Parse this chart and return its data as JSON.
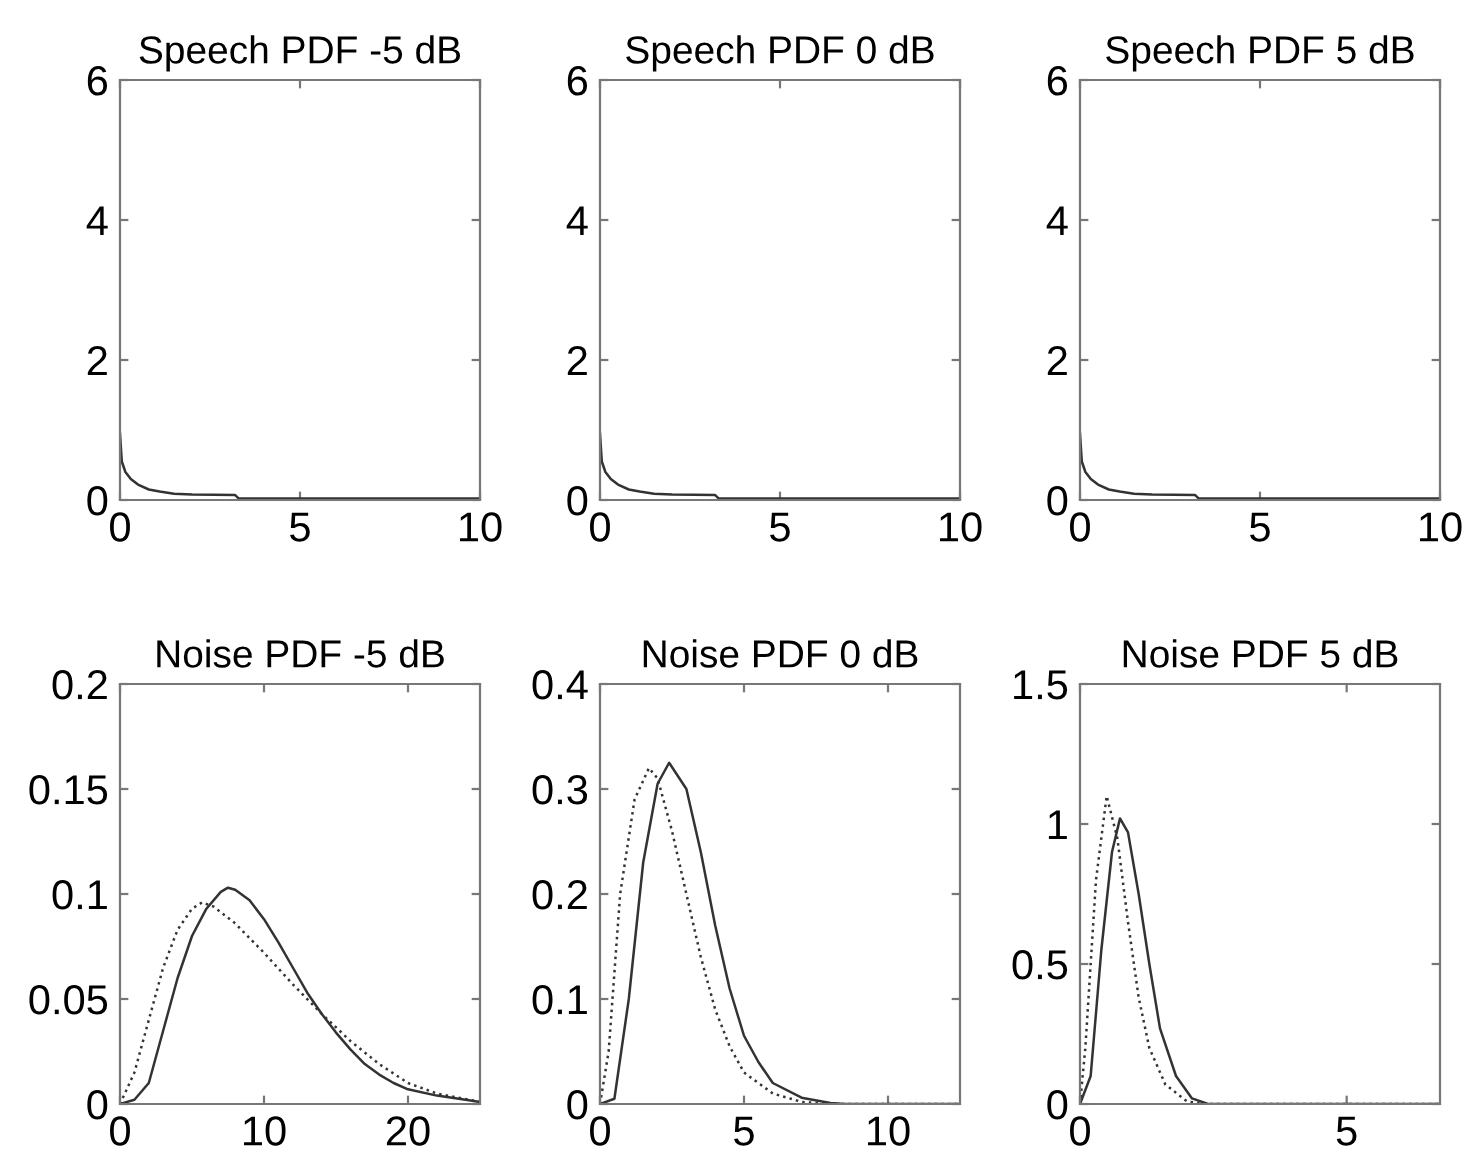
{
  "chart_data": [
    {
      "type": "line",
      "title": "Speech PDF -5 dB",
      "xlim": [
        0,
        10
      ],
      "xticks": [
        0,
        5,
        10
      ],
      "ylim": [
        0,
        6
      ],
      "yticks": [
        0,
        2,
        4,
        6
      ],
      "grid": false,
      "line_style": "solid",
      "series": [
        {
          "color": "#333333",
          "x": [
            0,
            0.05,
            0.15,
            0.3,
            0.5,
            0.8,
            1.1,
            1.5,
            2,
            3.2,
            3.3,
            10
          ],
          "values": [
            0.95,
            0.55,
            0.4,
            0.3,
            0.22,
            0.15,
            0.12,
            0.09,
            0.08,
            0.07,
            0.02,
            0.02
          ]
        }
      ]
    },
    {
      "type": "line",
      "title": "Speech PDF 0 dB",
      "xlim": [
        0,
        10
      ],
      "xticks": [
        0,
        5,
        10
      ],
      "ylim": [
        0,
        6
      ],
      "yticks": [
        0,
        2,
        4,
        6
      ],
      "grid": false,
      "line_style": "solid",
      "series": [
        {
          "color": "#333333",
          "x": [
            0,
            0.05,
            0.15,
            0.3,
            0.5,
            0.8,
            1.1,
            1.5,
            2,
            3.2,
            3.3,
            10
          ],
          "values": [
            0.95,
            0.55,
            0.4,
            0.3,
            0.22,
            0.15,
            0.12,
            0.09,
            0.08,
            0.07,
            0.02,
            0.02
          ]
        }
      ]
    },
    {
      "type": "line",
      "title": "Speech PDF 5 dB",
      "xlim": [
        0,
        10
      ],
      "xticks": [
        0,
        5,
        10
      ],
      "ylim": [
        0,
        6
      ],
      "yticks": [
        0,
        2,
        4,
        6
      ],
      "grid": false,
      "line_style": "solid",
      "series": [
        {
          "color": "#333333",
          "x": [
            0,
            0.05,
            0.15,
            0.3,
            0.5,
            0.8,
            1.1,
            1.5,
            2,
            3.2,
            3.3,
            10
          ],
          "values": [
            0.95,
            0.55,
            0.4,
            0.3,
            0.22,
            0.15,
            0.12,
            0.09,
            0.08,
            0.07,
            0.02,
            0.02
          ]
        }
      ]
    },
    {
      "type": "line",
      "title": "Noise PDF -5 dB",
      "xlim": [
        0,
        25
      ],
      "xticks": [
        0,
        10,
        20
      ],
      "ylim": [
        0,
        0.2
      ],
      "yticks": [
        0,
        0.05,
        0.1,
        0.15,
        0.2
      ],
      "grid": false,
      "series": [
        {
          "color": "#333333",
          "line_style": "solid",
          "x": [
            0,
            1,
            2,
            3,
            4,
            5,
            6,
            7,
            7.5,
            8,
            9,
            10,
            11,
            12,
            13,
            14,
            15,
            16,
            17,
            18,
            19,
            20,
            22,
            24,
            25
          ],
          "values": [
            0,
            0.002,
            0.01,
            0.035,
            0.06,
            0.08,
            0.093,
            0.101,
            0.103,
            0.102,
            0.097,
            0.088,
            0.077,
            0.065,
            0.053,
            0.043,
            0.034,
            0.026,
            0.019,
            0.014,
            0.01,
            0.007,
            0.004,
            0.002,
            0.001
          ]
        },
        {
          "color": "#333333",
          "line_style": "dotted",
          "x": [
            0,
            1,
            2,
            3,
            4,
            5,
            5.7,
            6.5,
            8,
            10,
            12,
            14,
            16,
            18,
            20,
            22,
            25
          ],
          "values": [
            0,
            0.015,
            0.04,
            0.065,
            0.083,
            0.093,
            0.096,
            0.094,
            0.086,
            0.072,
            0.057,
            0.043,
            0.03,
            0.019,
            0.01,
            0.005,
            0.001
          ]
        }
      ]
    },
    {
      "type": "line",
      "title": "Noise PDF 0 dB",
      "xlim": [
        0,
        12.5
      ],
      "xticks": [
        0,
        5,
        10
      ],
      "ylim": [
        0,
        0.4
      ],
      "yticks": [
        0,
        0.1,
        0.2,
        0.3,
        0.4
      ],
      "grid": false,
      "series": [
        {
          "color": "#333333",
          "line_style": "solid",
          "x": [
            0,
            0.5,
            1,
            1.5,
            2,
            2.4,
            3,
            3.5,
            4,
            4.5,
            5,
            5.5,
            6,
            7,
            8,
            8.5,
            12.5
          ],
          "values": [
            0,
            0.005,
            0.1,
            0.23,
            0.305,
            0.325,
            0.3,
            0.24,
            0.17,
            0.11,
            0.065,
            0.04,
            0.02,
            0.006,
            0.001,
            0,
            0
          ]
        },
        {
          "color": "#333333",
          "line_style": "dotted",
          "x": [
            0,
            0.3,
            0.7,
            1.2,
            1.7,
            2,
            2.5,
            3,
            3.5,
            4,
            4.5,
            5,
            6,
            7,
            8,
            12.5
          ],
          "values": [
            0,
            0.05,
            0.2,
            0.29,
            0.32,
            0.31,
            0.26,
            0.2,
            0.14,
            0.09,
            0.055,
            0.03,
            0.01,
            0.002,
            0,
            0
          ]
        }
      ]
    },
    {
      "type": "line",
      "title": "Noise PDF 5 dB",
      "xlim": [
        0,
        6.75
      ],
      "xticks": [
        0,
        5
      ],
      "ylim": [
        0,
        1.5
      ],
      "yticks": [
        0,
        0.5,
        1,
        1.5
      ],
      "grid": false,
      "series": [
        {
          "color": "#333333",
          "line_style": "solid",
          "x": [
            0,
            0.2,
            0.4,
            0.6,
            0.75,
            0.9,
            1.1,
            1.3,
            1.5,
            1.8,
            2.1,
            2.4,
            6.75
          ],
          "values": [
            0,
            0.1,
            0.55,
            0.9,
            1.02,
            0.97,
            0.75,
            0.5,
            0.27,
            0.1,
            0.02,
            0,
            0
          ]
        },
        {
          "color": "#333333",
          "line_style": "dotted",
          "x": [
            0,
            0.1,
            0.3,
            0.5,
            0.7,
            0.9,
            1.1,
            1.3,
            1.6,
            2,
            2.3,
            6.75
          ],
          "values": [
            0,
            0.2,
            0.8,
            1.1,
            0.95,
            0.65,
            0.38,
            0.2,
            0.07,
            0.01,
            0,
            0
          ]
        }
      ]
    }
  ]
}
